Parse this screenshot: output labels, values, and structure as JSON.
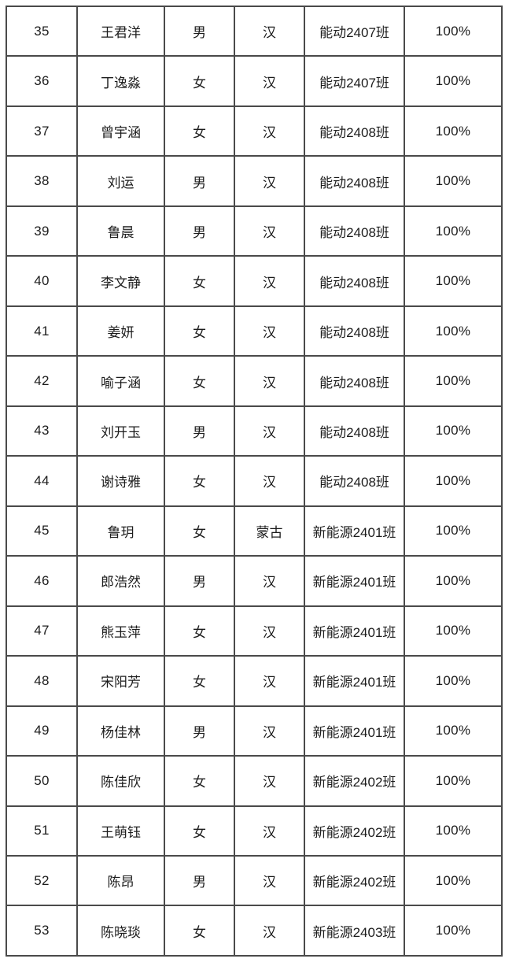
{
  "colors": {
    "page_background": "#ffffff",
    "grid_line": "#4a4a4a",
    "text": "#1c1c1c"
  },
  "table": {
    "description": "student-roster-table-segment",
    "visible_header": null,
    "rows": [
      {
        "no": "35",
        "name": "王君洋",
        "gender": "男",
        "ethnicity": "汉",
        "class": "能动2407班",
        "rate": "100%"
      },
      {
        "no": "36",
        "name": "丁逸淼",
        "gender": "女",
        "ethnicity": "汉",
        "class": "能动2407班",
        "rate": "100%"
      },
      {
        "no": "37",
        "name": "曾宇涵",
        "gender": "女",
        "ethnicity": "汉",
        "class": "能动2408班",
        "rate": "100%"
      },
      {
        "no": "38",
        "name": "刘运",
        "gender": "男",
        "ethnicity": "汉",
        "class": "能动2408班",
        "rate": "100%"
      },
      {
        "no": "39",
        "name": "鲁晨",
        "gender": "男",
        "ethnicity": "汉",
        "class": "能动2408班",
        "rate": "100%"
      },
      {
        "no": "40",
        "name": "李文静",
        "gender": "女",
        "ethnicity": "汉",
        "class": "能动2408班",
        "rate": "100%"
      },
      {
        "no": "41",
        "name": "姜妍",
        "gender": "女",
        "ethnicity": "汉",
        "class": "能动2408班",
        "rate": "100%"
      },
      {
        "no": "42",
        "name": "喻子涵",
        "gender": "女",
        "ethnicity": "汉",
        "class": "能动2408班",
        "rate": "100%"
      },
      {
        "no": "43",
        "name": "刘开玉",
        "gender": "男",
        "ethnicity": "汉",
        "class": "能动2408班",
        "rate": "100%"
      },
      {
        "no": "44",
        "name": "谢诗雅",
        "gender": "女",
        "ethnicity": "汉",
        "class": "能动2408班",
        "rate": "100%"
      },
      {
        "no": "45",
        "name": "鲁玥",
        "gender": "女",
        "ethnicity": "蒙古",
        "class": "新能源2401班",
        "rate": "100%"
      },
      {
        "no": "46",
        "name": "郎浩然",
        "gender": "男",
        "ethnicity": "汉",
        "class": "新能源2401班",
        "rate": "100%"
      },
      {
        "no": "47",
        "name": "熊玉萍",
        "gender": "女",
        "ethnicity": "汉",
        "class": "新能源2401班",
        "rate": "100%"
      },
      {
        "no": "48",
        "name": "宋阳芳",
        "gender": "女",
        "ethnicity": "汉",
        "class": "新能源2401班",
        "rate": "100%"
      },
      {
        "no": "49",
        "name": "杨佳林",
        "gender": "男",
        "ethnicity": "汉",
        "class": "新能源2401班",
        "rate": "100%"
      },
      {
        "no": "50",
        "name": "陈佳欣",
        "gender": "女",
        "ethnicity": "汉",
        "class": "新能源2402班",
        "rate": "100%"
      },
      {
        "no": "51",
        "name": "王萌钰",
        "gender": "女",
        "ethnicity": "汉",
        "class": "新能源2402班",
        "rate": "100%"
      },
      {
        "no": "52",
        "name": "陈昂",
        "gender": "男",
        "ethnicity": "汉",
        "class": "新能源2402班",
        "rate": "100%"
      },
      {
        "no": "53",
        "name": "陈晓琰",
        "gender": "女",
        "ethnicity": "汉",
        "class": "新能源2403班",
        "rate": "100%"
      }
    ]
  }
}
